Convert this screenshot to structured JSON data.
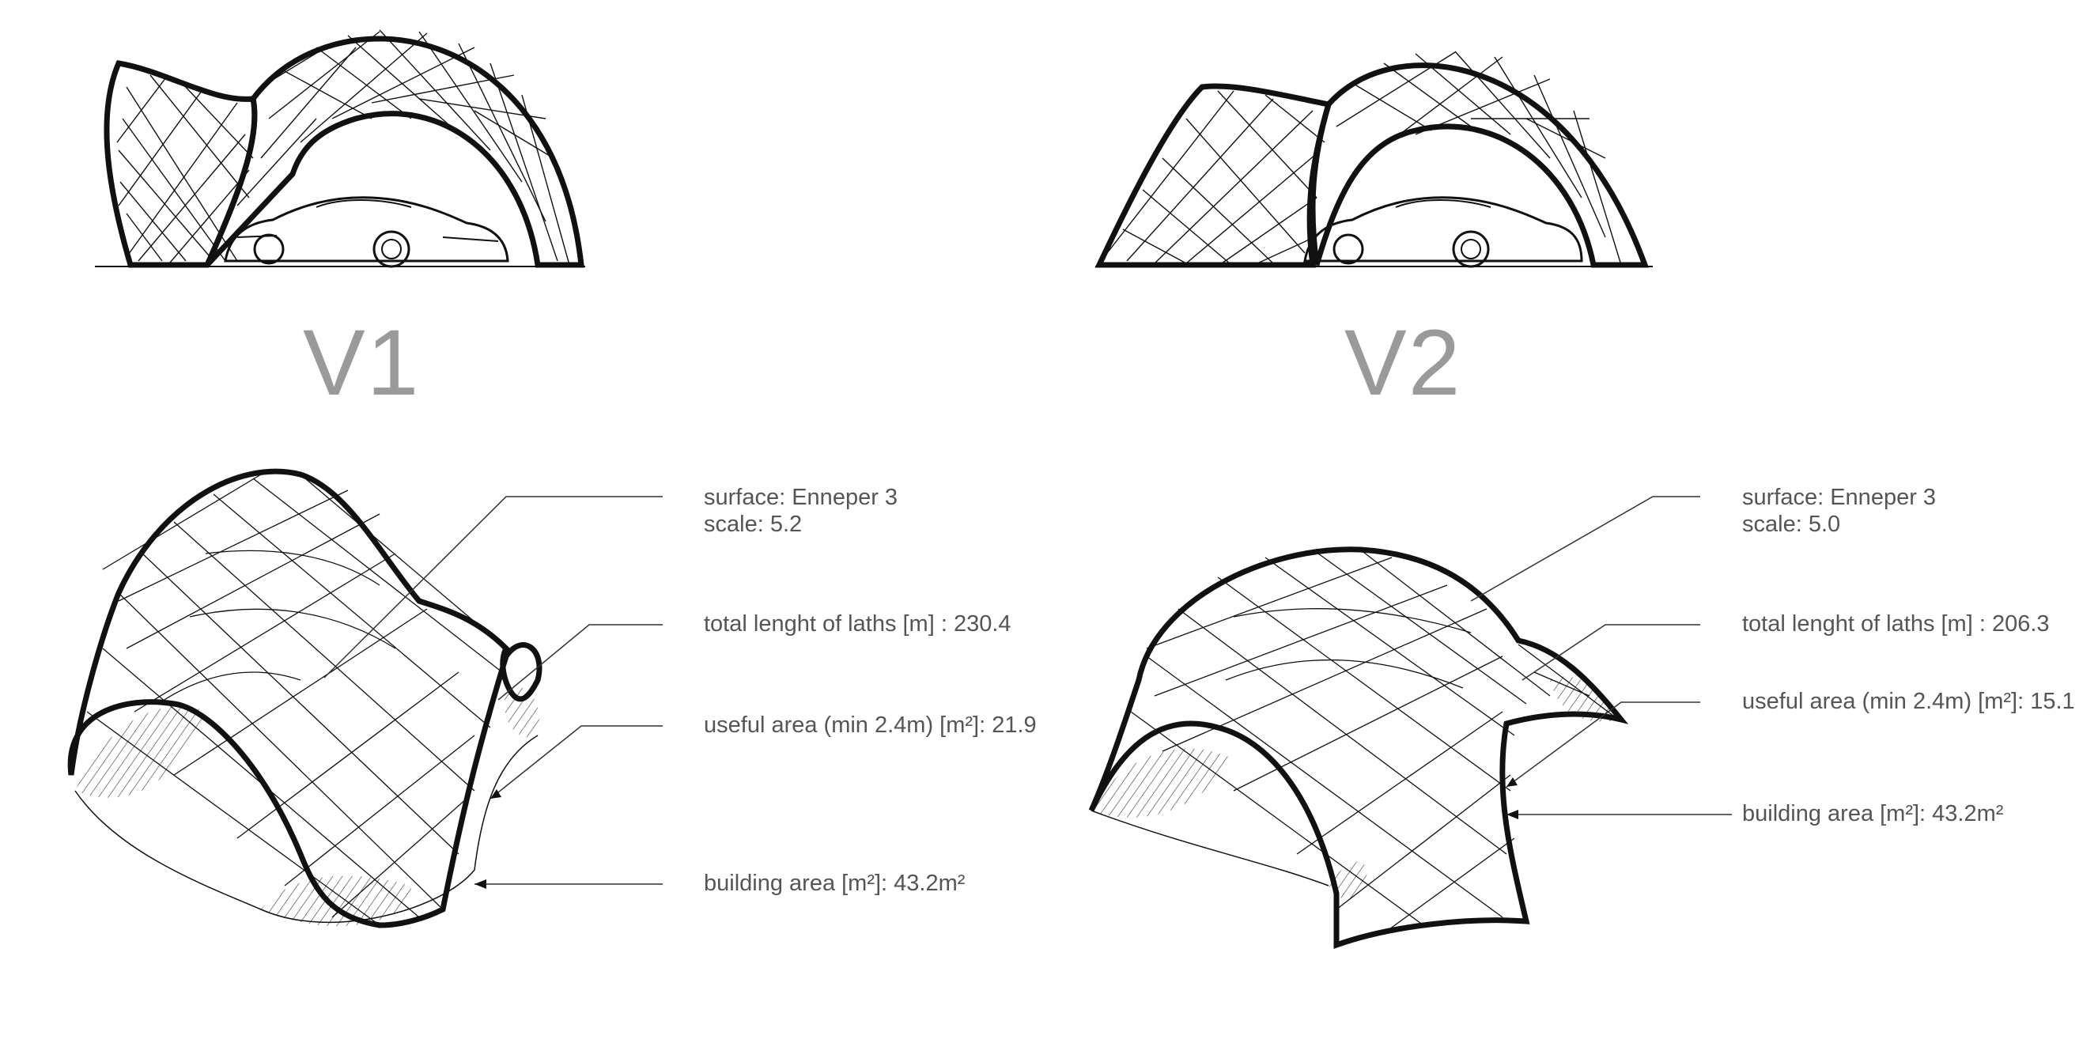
{
  "variants": [
    {
      "label": "V1",
      "annotations": {
        "surface": "surface: Enneper 3",
        "scale": "scale: 5.2",
        "laths": "total lenght of laths [m] : 230.4",
        "useful_area": "useful area (min 2.4m) [m²]: 21.9",
        "building_area": "building area [m²]: 43.2m²"
      }
    },
    {
      "label": "V2",
      "annotations": {
        "surface": "surface: Enneper 3",
        "scale": "scale: 5.0",
        "laths": "total lenght of laths [m] : 206.3",
        "useful_area": "useful area (min 2.4m) [m²]: 15.1",
        "building_area": "building area [m²]: 43.2m²"
      }
    }
  ],
  "colors": {
    "ink": "#111111",
    "label_grey": "#9a9a9a",
    "text_grey": "#555555"
  }
}
